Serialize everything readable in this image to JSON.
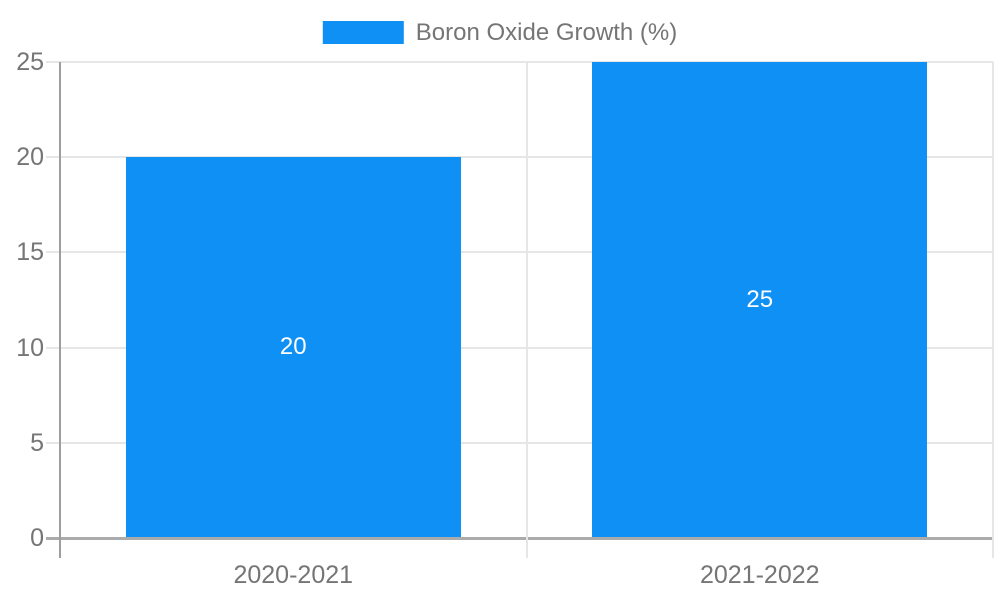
{
  "chart_data": {
    "type": "bar",
    "title": "",
    "legend": "Boron Oxide Growth (%)",
    "legend_position": "top-center",
    "categories": [
      "2020-2021",
      "2021-2022"
    ],
    "values": [
      20,
      25
    ],
    "data_labels": [
      "20",
      "25"
    ],
    "xlabel": "",
    "ylabel": "",
    "ylim": [
      0,
      25
    ],
    "yticks": [
      0,
      5,
      10,
      15,
      20,
      25
    ],
    "grid": true,
    "colors": {
      "bar": "#0e90f5",
      "tick_text": "#757575",
      "data_label_text": "#ffffff",
      "gridline": "#e6e6e6",
      "baseline": "#ababab",
      "axis_line": "#9e9e9e"
    }
  }
}
